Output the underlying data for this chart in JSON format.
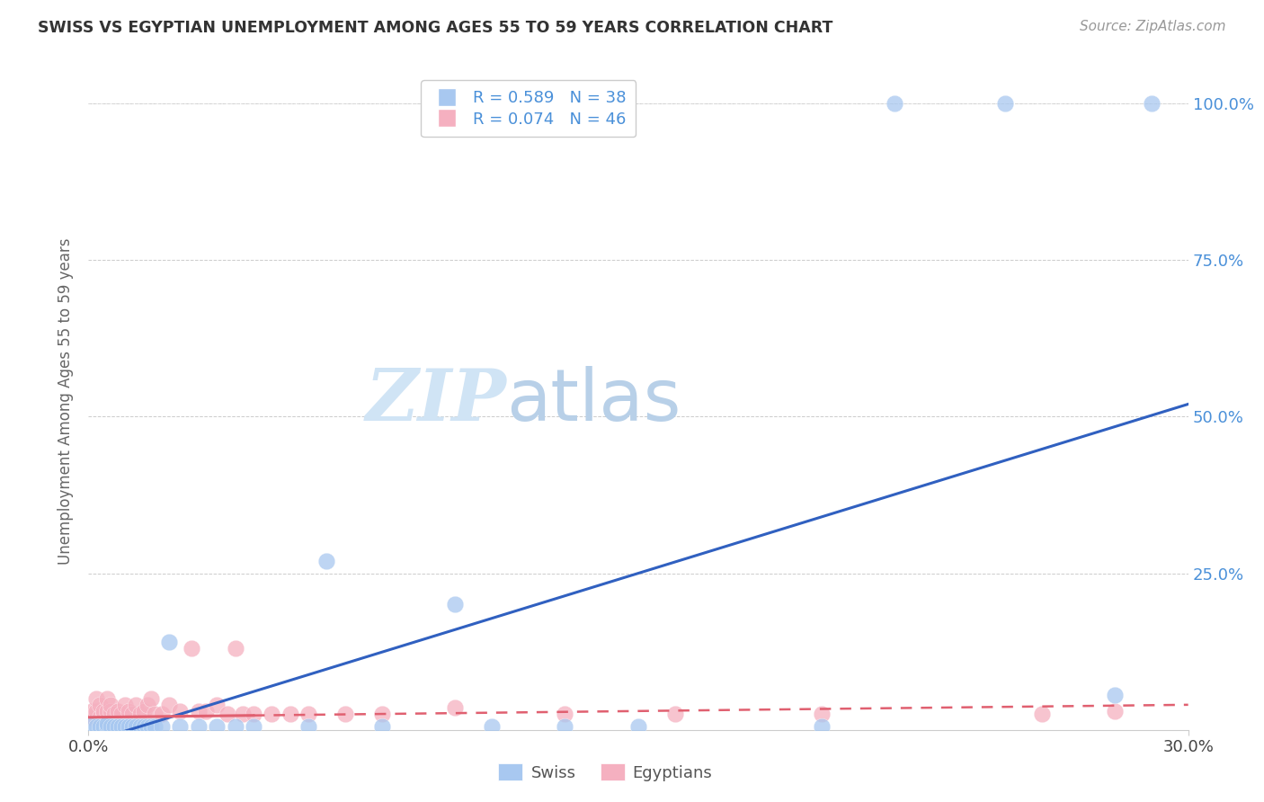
{
  "title": "SWISS VS EGYPTIAN UNEMPLOYMENT AMONG AGES 55 TO 59 YEARS CORRELATION CHART",
  "source": "Source: ZipAtlas.com",
  "ylabel": "Unemployment Among Ages 55 to 59 years",
  "xlim": [
    0.0,
    0.3
  ],
  "ylim": [
    0.0,
    1.05
  ],
  "swiss_R": 0.589,
  "swiss_N": 38,
  "egypt_R": 0.074,
  "egypt_N": 46,
  "swiss_color": "#a8c8f0",
  "egypt_color": "#f5b0c0",
  "trend_swiss_color": "#3060c0",
  "trend_egypt_color": "#e06070",
  "tick_label_color": "#4a90d9",
  "watermark_color": "#d0e4f5",
  "swiss_x": [
    0.001,
    0.002,
    0.003,
    0.004,
    0.005,
    0.005,
    0.006,
    0.007,
    0.008,
    0.009,
    0.01,
    0.011,
    0.012,
    0.013,
    0.014,
    0.015,
    0.016,
    0.017,
    0.018,
    0.02,
    0.022,
    0.025,
    0.03,
    0.035,
    0.04,
    0.045,
    0.06,
    0.065,
    0.08,
    0.1,
    0.11,
    0.13,
    0.15,
    0.2,
    0.22,
    0.25,
    0.28,
    0.29
  ],
  "swiss_y": [
    0.01,
    0.005,
    0.005,
    0.005,
    0.005,
    0.01,
    0.005,
    0.005,
    0.005,
    0.005,
    0.005,
    0.005,
    0.005,
    0.005,
    0.005,
    0.005,
    0.005,
    0.005,
    0.005,
    0.005,
    0.14,
    0.005,
    0.005,
    0.005,
    0.005,
    0.005,
    0.005,
    0.27,
    0.005,
    0.2,
    0.005,
    0.005,
    0.005,
    0.005,
    1.0,
    1.0,
    0.055,
    1.0
  ],
  "egypt_x": [
    0.001,
    0.001,
    0.002,
    0.002,
    0.003,
    0.003,
    0.004,
    0.004,
    0.005,
    0.005,
    0.006,
    0.006,
    0.007,
    0.008,
    0.009,
    0.01,
    0.011,
    0.012,
    0.013,
    0.014,
    0.015,
    0.016,
    0.017,
    0.018,
    0.02,
    0.022,
    0.025,
    0.028,
    0.03,
    0.032,
    0.035,
    0.038,
    0.04,
    0.042,
    0.045,
    0.05,
    0.055,
    0.06,
    0.07,
    0.08,
    0.1,
    0.13,
    0.16,
    0.2,
    0.26,
    0.28
  ],
  "egypt_y": [
    0.02,
    0.03,
    0.03,
    0.05,
    0.02,
    0.04,
    0.025,
    0.03,
    0.03,
    0.05,
    0.03,
    0.04,
    0.025,
    0.03,
    0.025,
    0.04,
    0.03,
    0.025,
    0.04,
    0.025,
    0.03,
    0.04,
    0.05,
    0.025,
    0.025,
    0.04,
    0.03,
    0.13,
    0.03,
    0.03,
    0.04,
    0.025,
    0.13,
    0.025,
    0.025,
    0.025,
    0.025,
    0.025,
    0.025,
    0.025,
    0.035,
    0.025,
    0.025,
    0.025,
    0.025,
    0.03
  ],
  "trend_swiss_x0": 0.0,
  "trend_swiss_y0": -0.02,
  "trend_swiss_x1": 0.3,
  "trend_swiss_y1": 0.52,
  "trend_egypt_x0": 0.0,
  "trend_egypt_y0": 0.02,
  "trend_egypt_x1": 0.3,
  "trend_egypt_y1": 0.04,
  "egypt_solid_until": 0.045
}
